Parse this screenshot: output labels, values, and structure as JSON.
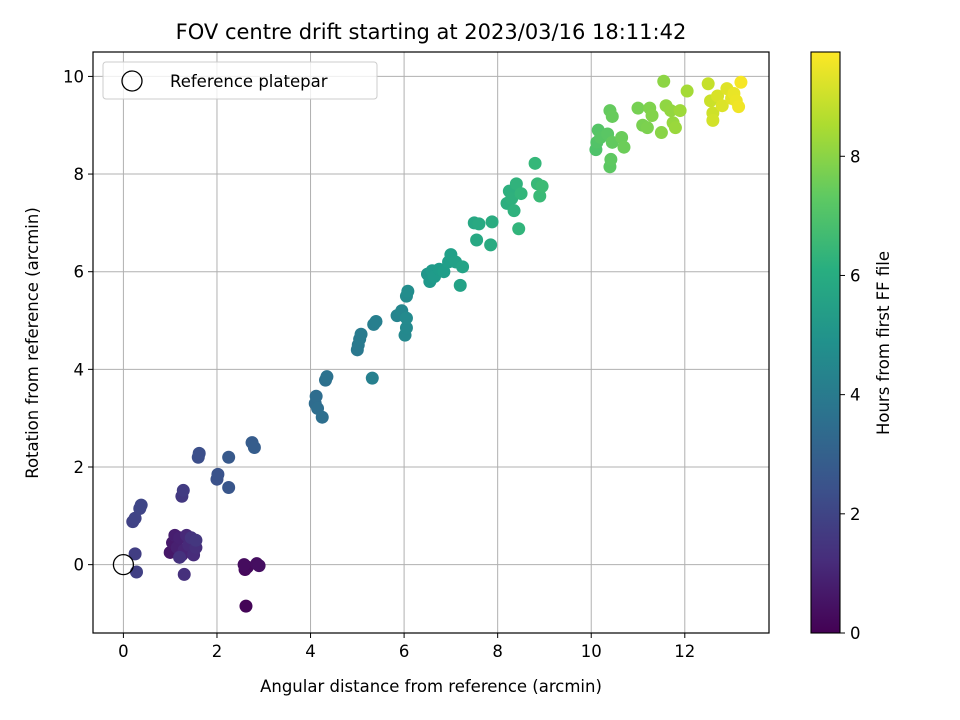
{
  "chart_data": {
    "type": "scatter",
    "title": "FOV centre drift starting at 2023/03/16 18:11:42",
    "xlabel": "Angular distance from reference (arcmin)",
    "ylabel": "Rotation from reference (arcmin)",
    "xlim": [
      -0.65,
      13.8
    ],
    "ylim": [
      -1.4,
      10.5
    ],
    "xticks": [
      0,
      2,
      4,
      6,
      8,
      10,
      12
    ],
    "yticks": [
      0,
      2,
      4,
      6,
      8,
      10
    ],
    "grid": true,
    "colormap": "viridis",
    "colorbar": {
      "label": "Hours from first FF file",
      "range": [
        0,
        9.75
      ],
      "ticks": [
        0,
        2,
        4,
        6,
        8
      ]
    },
    "legend": {
      "placement": "top-left",
      "entries": [
        "Reference platepar"
      ]
    },
    "reference_point": {
      "x": 0,
      "y": 0,
      "label": "Reference platepar"
    },
    "points": [
      [
        2.62,
        -0.85,
        0.1
      ],
      [
        2.6,
        -0.1,
        0.2
      ],
      [
        2.65,
        -0.05,
        0.25
      ],
      [
        2.58,
        0.0,
        0.3
      ],
      [
        2.85,
        0.02,
        0.35
      ],
      [
        2.9,
        -0.02,
        0.4
      ],
      [
        1.0,
        0.25,
        0.6
      ],
      [
        1.05,
        0.45,
        0.7
      ],
      [
        1.1,
        0.6,
        0.8
      ],
      [
        1.15,
        0.35,
        0.85
      ],
      [
        1.2,
        0.55,
        0.9
      ],
      [
        1.25,
        0.2,
        0.95
      ],
      [
        1.3,
        0.3,
        1.0
      ],
      [
        1.35,
        0.6,
        1.1
      ],
      [
        1.4,
        0.4,
        1.15
      ],
      [
        1.5,
        0.2,
        1.2
      ],
      [
        1.55,
        0.35,
        1.3
      ],
      [
        1.3,
        -0.2,
        1.35
      ],
      [
        1.2,
        0.15,
        1.4
      ],
      [
        1.45,
        0.55,
        1.45
      ],
      [
        1.55,
        0.5,
        1.55
      ],
      [
        1.25,
        1.4,
        1.6
      ],
      [
        1.28,
        1.52,
        1.7
      ],
      [
        0.25,
        0.22,
        1.8
      ],
      [
        0.28,
        -0.15,
        1.85
      ],
      [
        0.2,
        0.88,
        1.9
      ],
      [
        0.25,
        0.95,
        1.95
      ],
      [
        0.35,
        1.15,
        2.0
      ],
      [
        0.38,
        1.22,
        2.05
      ],
      [
        1.6,
        2.2,
        2.3
      ],
      [
        1.62,
        2.28,
        2.35
      ],
      [
        2.0,
        1.75,
        2.45
      ],
      [
        2.02,
        1.85,
        2.5
      ],
      [
        2.25,
        1.58,
        2.6
      ],
      [
        2.25,
        2.2,
        2.7
      ],
      [
        2.75,
        2.5,
        2.8
      ],
      [
        2.8,
        2.4,
        2.85
      ],
      [
        4.1,
        3.3,
        3.4
      ],
      [
        4.12,
        3.45,
        3.45
      ],
      [
        4.15,
        3.2,
        3.5
      ],
      [
        4.25,
        3.02,
        3.55
      ],
      [
        4.32,
        3.78,
        3.6
      ],
      [
        4.35,
        3.85,
        3.65
      ],
      [
        5.0,
        4.4,
        3.9
      ],
      [
        5.02,
        4.5,
        3.95
      ],
      [
        5.05,
        4.62,
        4.0
      ],
      [
        5.08,
        4.72,
        4.05
      ],
      [
        5.35,
        4.92,
        4.15
      ],
      [
        5.4,
        4.98,
        4.2
      ],
      [
        5.32,
        3.82,
        4.25
      ],
      [
        5.85,
        5.1,
        4.4
      ],
      [
        5.95,
        5.2,
        4.5
      ],
      [
        6.02,
        4.7,
        4.55
      ],
      [
        6.05,
        4.85,
        4.6
      ],
      [
        6.05,
        5.05,
        4.65
      ],
      [
        6.05,
        5.5,
        4.7
      ],
      [
        6.08,
        5.6,
        4.75
      ],
      [
        6.5,
        5.95,
        5.1
      ],
      [
        6.55,
        5.8,
        5.2
      ],
      [
        6.6,
        6.02,
        5.25
      ],
      [
        6.65,
        5.9,
        5.3
      ],
      [
        6.75,
        6.05,
        5.35
      ],
      [
        6.85,
        6.0,
        5.4
      ],
      [
        6.95,
        6.2,
        5.45
      ],
      [
        7.0,
        6.35,
        5.5
      ],
      [
        7.1,
        6.2,
        5.55
      ],
      [
        7.2,
        5.72,
        5.6
      ],
      [
        7.25,
        6.1,
        5.65
      ],
      [
        7.5,
        7.0,
        5.8
      ],
      [
        7.55,
        6.65,
        5.85
      ],
      [
        7.6,
        6.98,
        5.9
      ],
      [
        7.85,
        6.55,
        5.95
      ],
      [
        7.88,
        7.02,
        6.0
      ],
      [
        8.2,
        7.4,
        6.1
      ],
      [
        8.25,
        7.65,
        6.15
      ],
      [
        8.3,
        7.5,
        6.2
      ],
      [
        8.35,
        7.25,
        6.25
      ],
      [
        8.4,
        7.8,
        6.3
      ],
      [
        8.45,
        6.88,
        6.35
      ],
      [
        8.5,
        7.6,
        6.4
      ],
      [
        8.8,
        8.22,
        6.5
      ],
      [
        8.85,
        7.8,
        6.55
      ],
      [
        8.9,
        7.55,
        6.6
      ],
      [
        8.95,
        7.75,
        6.65
      ],
      [
        10.1,
        8.5,
        7.0
      ],
      [
        10.12,
        8.65,
        7.05
      ],
      [
        10.15,
        8.9,
        7.1
      ],
      [
        10.2,
        8.75,
        7.15
      ],
      [
        10.35,
        8.82,
        7.2
      ],
      [
        10.4,
        8.15,
        7.25
      ],
      [
        10.42,
        8.3,
        7.3
      ],
      [
        10.45,
        8.65,
        7.35
      ],
      [
        10.4,
        9.3,
        7.4
      ],
      [
        10.45,
        9.18,
        7.45
      ],
      [
        10.65,
        8.75,
        7.5
      ],
      [
        10.7,
        8.55,
        7.55
      ],
      [
        11.0,
        9.35,
        7.7
      ],
      [
        11.1,
        9.0,
        7.75
      ],
      [
        11.2,
        8.95,
        7.8
      ],
      [
        11.25,
        9.35,
        7.85
      ],
      [
        11.3,
        9.2,
        7.9
      ],
      [
        11.5,
        8.85,
        8.0
      ],
      [
        11.55,
        9.9,
        8.05
      ],
      [
        11.6,
        9.4,
        8.1
      ],
      [
        11.7,
        9.3,
        8.15
      ],
      [
        11.75,
        9.05,
        8.2
      ],
      [
        11.8,
        8.95,
        8.25
      ],
      [
        11.9,
        9.3,
        8.3
      ],
      [
        12.05,
        9.7,
        8.4
      ],
      [
        12.5,
        9.85,
        8.9
      ],
      [
        12.55,
        9.5,
        9.0
      ],
      [
        12.6,
        9.25,
        9.05
      ],
      [
        12.6,
        9.1,
        9.1
      ],
      [
        12.7,
        9.6,
        9.2
      ],
      [
        12.8,
        9.4,
        9.25
      ],
      [
        12.9,
        9.75,
        9.3
      ],
      [
        13.0,
        9.55,
        9.35
      ],
      [
        13.05,
        9.65,
        9.45
      ],
      [
        13.1,
        9.5,
        9.5
      ],
      [
        13.15,
        9.38,
        9.55
      ],
      [
        13.2,
        9.88,
        9.65
      ]
    ]
  }
}
